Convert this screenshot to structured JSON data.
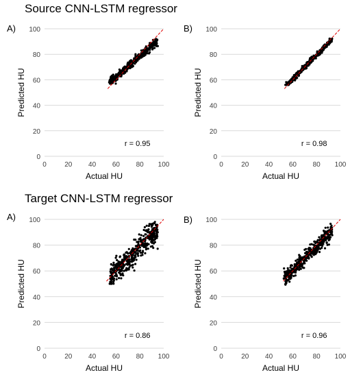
{
  "figure": {
    "source_title": "Source CNN-LSTM regressor",
    "target_title": "Target CNN-LSTM regressor"
  },
  "style": {
    "point_color": "#000000",
    "fit_line_color": "#e00000",
    "grid_color": "#d9d9d9"
  },
  "chart_data": [
    {
      "type": "scatter",
      "panel": "A)",
      "group": "Source CNN-LSTM regressor",
      "xlabel": "Actual HU",
      "ylabel": "Predicted HU",
      "xlim": [
        0,
        100
      ],
      "ylim": [
        0,
        100
      ],
      "ticks": [
        0,
        20,
        40,
        60,
        80,
        100
      ],
      "grid": "horizontal",
      "annotation": "r = 0.95",
      "fit_line": {
        "x": [
          53,
          100
        ],
        "y": [
          53,
          100
        ]
      },
      "points_summary": {
        "n": 400,
        "x_range": [
          55,
          95
        ],
        "y_range": [
          57,
          92
        ],
        "slope": 0.8,
        "intercept": 14.5,
        "spread": 1.6
      }
    },
    {
      "type": "scatter",
      "panel": "B)",
      "group": "Source CNN-LSTM regressor",
      "xlabel": "Actual HU",
      "ylabel": "Predicted HU",
      "xlim": [
        0,
        100
      ],
      "ylim": [
        0,
        100
      ],
      "ticks": [
        0,
        20,
        40,
        60,
        80,
        100
      ],
      "grid": "horizontal",
      "annotation": "r = 0.98",
      "fit_line": {
        "x": [
          53,
          100
        ],
        "y": [
          53,
          100
        ]
      },
      "points_summary": {
        "n": 400,
        "x_range": [
          54,
          93
        ],
        "y_range": [
          56,
          93
        ],
        "slope": 0.95,
        "intercept": 3.5,
        "spread": 1.0
      }
    },
    {
      "type": "scatter",
      "panel": "A)",
      "group": "Target CNN-LSTM regressor",
      "xlabel": "Actual HU",
      "ylabel": "Predicted HU",
      "xlim": [
        0,
        100
      ],
      "ylim": [
        0,
        100
      ],
      "ticks": [
        0,
        20,
        40,
        60,
        80,
        100
      ],
      "grid": "horizontal",
      "annotation": "r = 0.86",
      "fit_line": {
        "x": [
          52,
          100
        ],
        "y": [
          52,
          100
        ]
      },
      "points_summary": {
        "n": 450,
        "x_range": [
          55,
          95
        ],
        "y_range": [
          50,
          98
        ],
        "slope": 0.92,
        "intercept": 5,
        "spread": 4.5
      }
    },
    {
      "type": "scatter",
      "panel": "B)",
      "group": "Target CNN-LSTM regressor",
      "xlabel": "Actual HU",
      "ylabel": "Predicted HU",
      "xlim": [
        0,
        100
      ],
      "ylim": [
        0,
        100
      ],
      "ticks": [
        0,
        20,
        40,
        60,
        80,
        100
      ],
      "grid": "horizontal",
      "annotation": "r = 0.96",
      "fit_line": {
        "x": [
          52,
          100
        ],
        "y": [
          52,
          100
        ]
      },
      "points_summary": {
        "n": 450,
        "x_range": [
          53,
          93
        ],
        "y_range": [
          47,
          98
        ],
        "slope": 0.95,
        "intercept": 3,
        "spread": 2.8
      }
    }
  ]
}
